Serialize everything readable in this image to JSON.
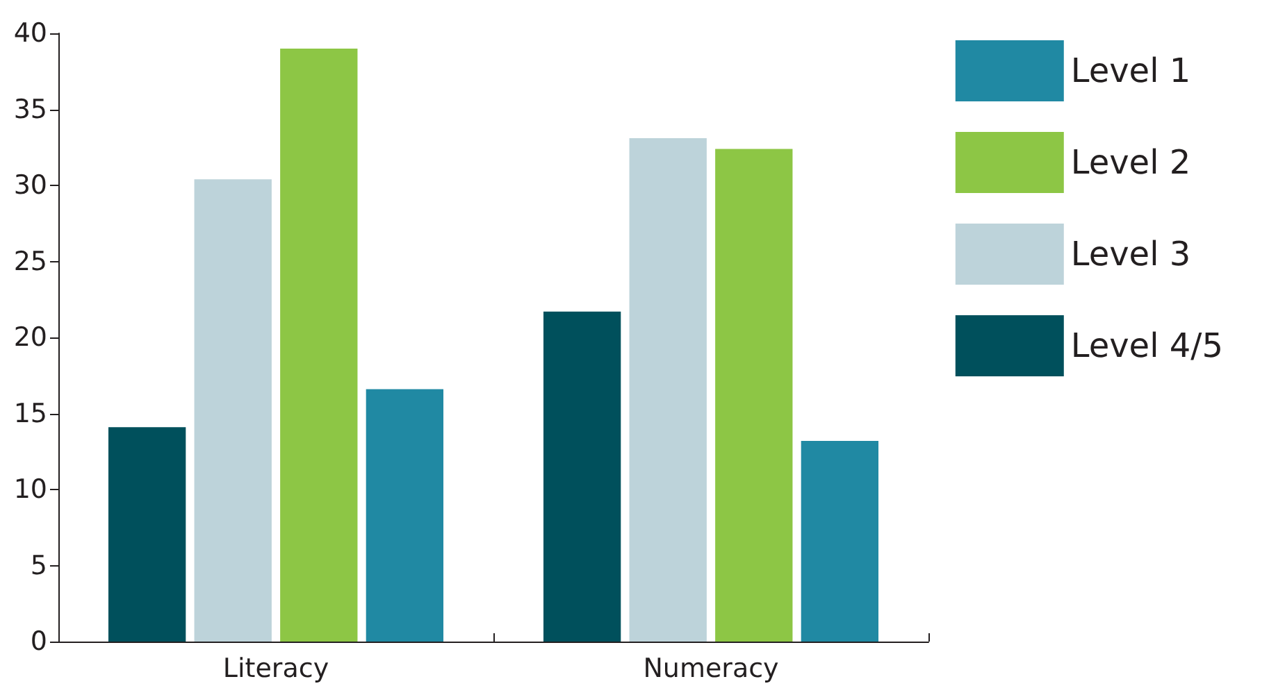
{
  "chart_data": {
    "type": "bar",
    "categories": [
      "Literacy",
      "Numeracy"
    ],
    "series": [
      {
        "name": "Level 1",
        "color": "#2089a3",
        "values": [
          16.6,
          13.2
        ]
      },
      {
        "name": "Level 2",
        "color": "#8dc645",
        "values": [
          39.0,
          32.4
        ]
      },
      {
        "name": "Level 3",
        "color": "#bdd3da",
        "values": [
          30.4,
          33.1
        ]
      },
      {
        "name": "Level 4/5",
        "color": "#00505c",
        "values": [
          14.1,
          21.7
        ]
      }
    ],
    "ylim": [
      0,
      40
    ],
    "yticks": [
      0,
      5,
      10,
      15,
      20,
      25,
      30,
      35,
      40
    ],
    "grid": false,
    "legend": "top right"
  }
}
